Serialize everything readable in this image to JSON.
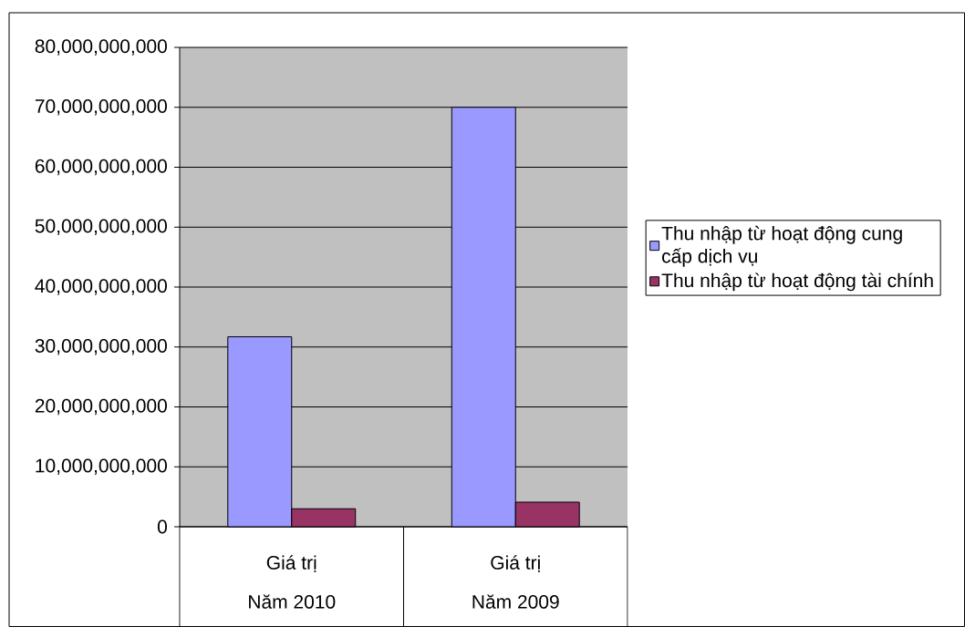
{
  "chart_data": {
    "type": "bar",
    "categories": [
      "Giá trị",
      "Giá trị"
    ],
    "annotations": [
      "Năm 2010",
      "Năm 2009"
    ],
    "series": [
      {
        "name": "Thu nhập từ hoạt động cung cấp dịch vụ",
        "color": "#9999ff",
        "values": [
          31700000000,
          70000000000
        ]
      },
      {
        "name": "Thu nhập từ hoạt động tài chính",
        "color": "#993366",
        "values": [
          3000000000,
          4100000000
        ]
      }
    ],
    "ylim": [
      0,
      80000000000
    ],
    "yticks": [
      {
        "value": 0,
        "label": "0"
      },
      {
        "value": 10000000000,
        "label": "10,000,000,000"
      },
      {
        "value": 20000000000,
        "label": "20,000,000,000"
      },
      {
        "value": 30000000000,
        "label": "30,000,000,000"
      },
      {
        "value": 40000000000,
        "label": "40,000,000,000"
      },
      {
        "value": 50000000000,
        "label": "50,000,000,000"
      },
      {
        "value": 60000000000,
        "label": "60,000,000,000"
      },
      {
        "value": 70000000000,
        "label": "70,000,000,000"
      },
      {
        "value": 80000000000,
        "label": "80,000,000,000"
      }
    ],
    "grid": "y",
    "legend": "right"
  }
}
